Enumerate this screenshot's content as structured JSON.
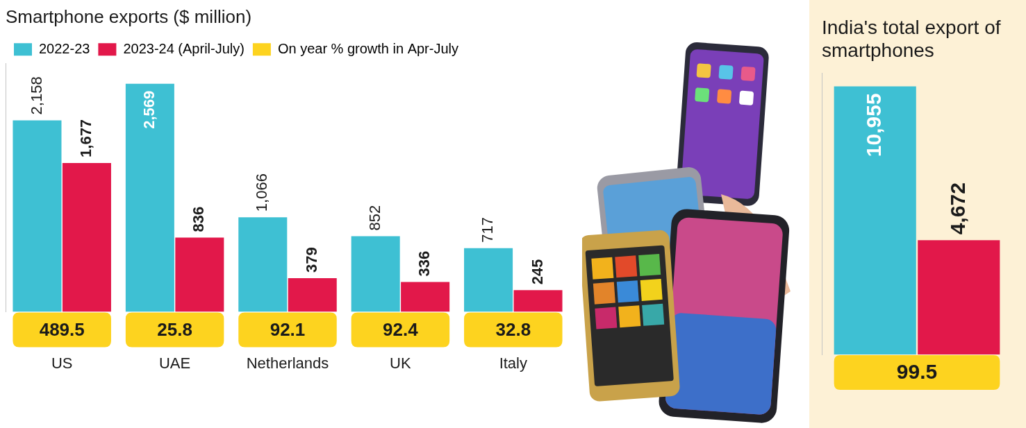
{
  "chart_data": [
    {
      "type": "bar",
      "title": "Smartphone exports ($ million)",
      "categories": [
        "US",
        "UAE",
        "Netherlands",
        "UK",
        "Italy"
      ],
      "series": [
        {
          "name": "2022-23",
          "color": "#3ec0d3",
          "values": [
            2158,
            2569,
            1066,
            852,
            717
          ],
          "value_labels": [
            "2,158",
            "2,569",
            "1,066",
            "852",
            "717"
          ]
        },
        {
          "name": "2023-24 (April-July)",
          "color": "#e2184a",
          "values": [
            1677,
            836,
            379,
            336,
            245
          ],
          "value_labels": [
            "1,677",
            "836",
            "379",
            "336",
            "245"
          ]
        }
      ],
      "growth": {
        "name": "On year % growth in Apr-July",
        "color": "#fdd31f",
        "values": [
          489.5,
          25.8,
          92.1,
          92.4,
          32.8
        ]
      },
      "ylim": [
        0,
        2800
      ],
      "grid": false,
      "legend": "top-left",
      "data_labels": true,
      "tick_labels": "x"
    },
    {
      "type": "bar",
      "title": "India's total export of smartphones",
      "categories": [
        null
      ],
      "series": [
        {
          "name": "2022-23",
          "color": "#3ec0d3",
          "values": [
            10955
          ],
          "value_labels": [
            "10,955"
          ]
        },
        {
          "name": "2023-24 (April-July)",
          "color": "#e2184a",
          "values": [
            4672
          ],
          "value_labels": [
            "4,672"
          ]
        }
      ],
      "growth": {
        "name": "On year % growth in Apr-July",
        "color": "#fdd31f",
        "values": [
          99.5
        ]
      },
      "ylim": [
        0,
        11500
      ],
      "grid": false,
      "data_labels": true,
      "tick_labels": false
    }
  ]
}
